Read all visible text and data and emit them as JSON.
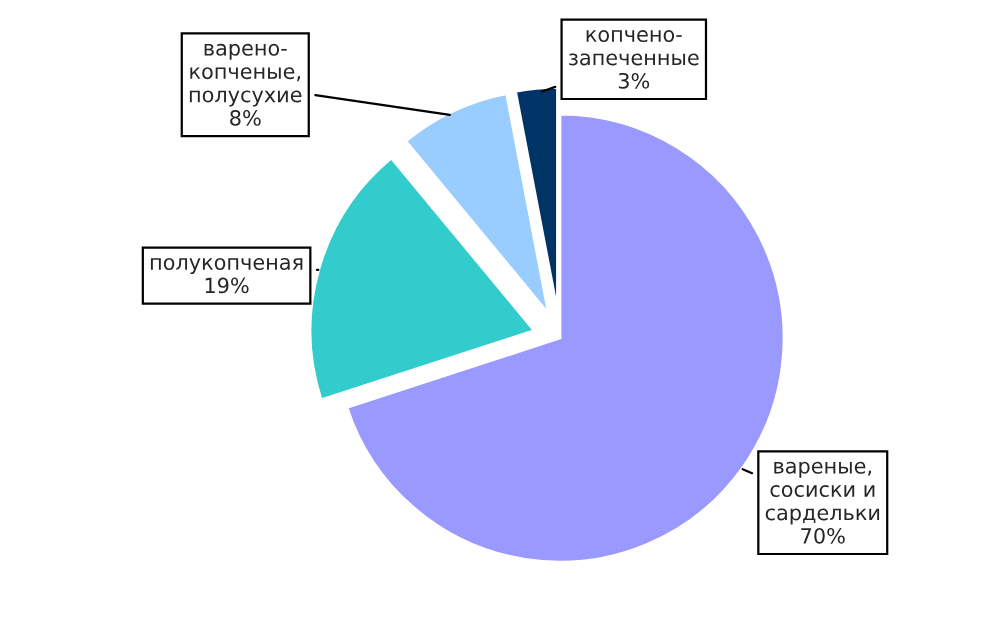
{
  "chart_data": {
    "type": "pie",
    "categories": [
      "вареные,\nсосиски и\nсардельки",
      "полукопченая",
      "варено-\nкопченые,\nполусухие",
      "копчено-\nзапеченные"
    ],
    "values": [
      70,
      19,
      8,
      3
    ],
    "value_labels": [
      "70%",
      "19%",
      "8%",
      "3%"
    ],
    "colors": [
      "#9999ff",
      "#33cccc",
      "#99ccff",
      "#003366"
    ]
  }
}
